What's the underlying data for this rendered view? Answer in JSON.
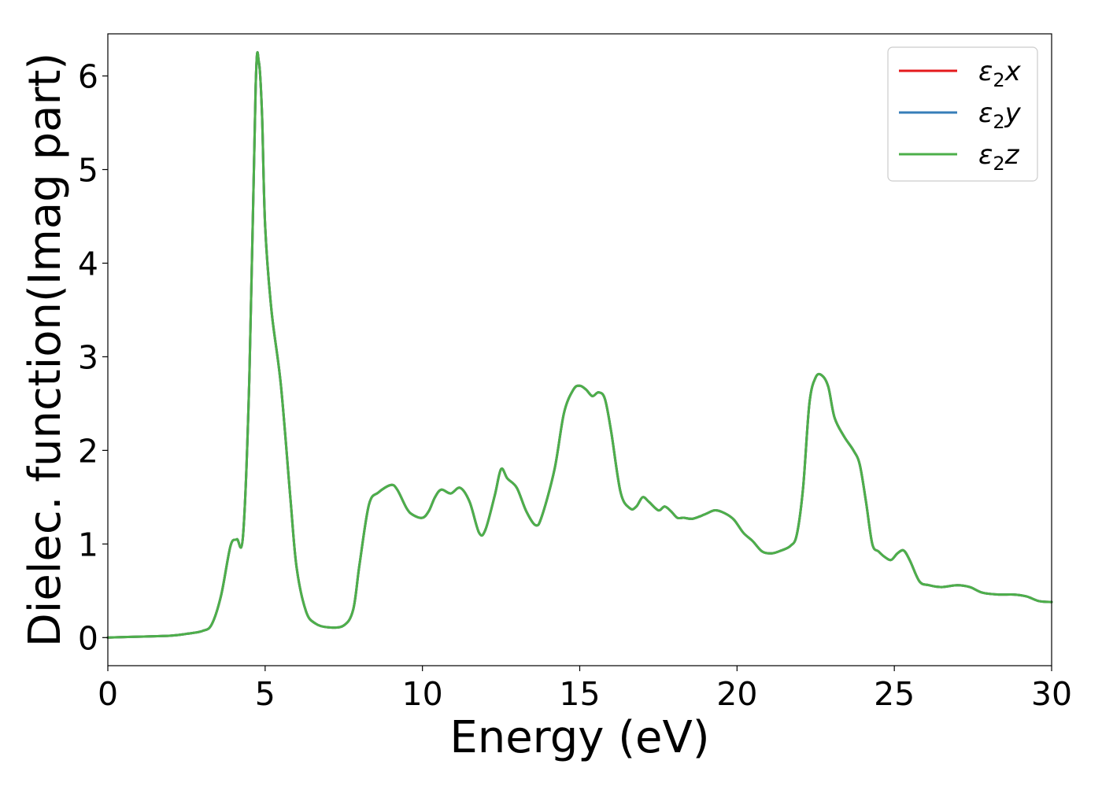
{
  "chart_data": {
    "type": "line",
    "title": "",
    "xlabel": "Energy (eV)",
    "ylabel": "Dielec. function(Imag part)",
    "xlim": [
      0,
      30
    ],
    "ylim": [
      -0.3,
      6.45
    ],
    "xticks": [
      0,
      5,
      10,
      15,
      20,
      25,
      30
    ],
    "xtick_labels": [
      "0",
      "5",
      "10",
      "15",
      "20",
      "25",
      "30"
    ],
    "yticks": [
      0,
      1,
      2,
      3,
      4,
      5,
      6
    ],
    "ytick_labels": [
      "0",
      "1",
      "2",
      "3",
      "4",
      "5",
      "6"
    ],
    "grid": false,
    "legend_position": "top-right",
    "x": [
      0,
      1,
      2,
      2.5,
      3,
      3.3,
      3.6,
      3.9,
      4.1,
      4.3,
      4.5,
      4.7,
      4.8,
      4.9,
      5.0,
      5.2,
      5.5,
      5.8,
      6.0,
      6.3,
      6.6,
      7.0,
      7.5,
      7.8,
      8.0,
      8.3,
      8.6,
      9.0,
      9.2,
      9.5,
      9.7,
      10.0,
      10.2,
      10.4,
      10.6,
      10.9,
      11.2,
      11.5,
      11.8,
      12.0,
      12.3,
      12.5,
      12.7,
      13.0,
      13.3,
      13.6,
      13.8,
      14.2,
      14.5,
      14.8,
      15.0,
      15.2,
      15.4,
      15.6,
      15.8,
      16.0,
      16.3,
      16.6,
      16.8,
      17.0,
      17.2,
      17.5,
      17.7,
      17.9,
      18.1,
      18.3,
      18.6,
      19.0,
      19.3,
      19.6,
      19.9,
      20.2,
      20.5,
      20.8,
      21.1,
      21.4,
      21.7,
      21.9,
      22.1,
      22.3,
      22.5,
      22.7,
      22.9,
      23.1,
      23.4,
      23.7,
      23.9,
      24.1,
      24.3,
      24.5,
      24.7,
      24.9,
      25.1,
      25.3,
      25.5,
      25.8,
      26.1,
      26.5,
      27.0,
      27.4,
      27.8,
      28.3,
      28.8,
      29.2,
      29.6,
      30.0
    ],
    "series": [
      {
        "name": "x",
        "color": "#e41a1c",
        "values": [
          0.0,
          0.01,
          0.02,
          0.04,
          0.07,
          0.14,
          0.45,
          0.98,
          1.05,
          1.1,
          2.8,
          5.9,
          6.15,
          5.6,
          4.4,
          3.5,
          2.7,
          1.5,
          0.75,
          0.28,
          0.15,
          0.11,
          0.13,
          0.3,
          0.78,
          1.42,
          1.55,
          1.63,
          1.58,
          1.38,
          1.31,
          1.28,
          1.35,
          1.5,
          1.58,
          1.54,
          1.6,
          1.45,
          1.12,
          1.15,
          1.52,
          1.8,
          1.7,
          1.6,
          1.35,
          1.2,
          1.3,
          1.8,
          2.4,
          2.65,
          2.69,
          2.65,
          2.58,
          2.62,
          2.55,
          2.2,
          1.55,
          1.38,
          1.4,
          1.5,
          1.45,
          1.36,
          1.4,
          1.35,
          1.28,
          1.28,
          1.27,
          1.32,
          1.36,
          1.33,
          1.26,
          1.12,
          1.03,
          0.92,
          0.9,
          0.93,
          0.98,
          1.1,
          1.6,
          2.5,
          2.78,
          2.8,
          2.68,
          2.35,
          2.15,
          2.0,
          1.85,
          1.45,
          1.0,
          0.92,
          0.86,
          0.83,
          0.9,
          0.93,
          0.82,
          0.6,
          0.56,
          0.54,
          0.56,
          0.54,
          0.48,
          0.46,
          0.46,
          0.44,
          0.39,
          0.38
        ]
      },
      {
        "name": "y",
        "color": "#377eb8",
        "values": [
          0.0,
          0.01,
          0.02,
          0.04,
          0.07,
          0.14,
          0.45,
          0.98,
          1.05,
          1.1,
          2.8,
          5.9,
          6.15,
          5.6,
          4.4,
          3.5,
          2.7,
          1.5,
          0.75,
          0.28,
          0.15,
          0.11,
          0.13,
          0.3,
          0.78,
          1.42,
          1.55,
          1.63,
          1.58,
          1.38,
          1.31,
          1.28,
          1.35,
          1.5,
          1.58,
          1.54,
          1.6,
          1.45,
          1.12,
          1.15,
          1.52,
          1.8,
          1.7,
          1.6,
          1.35,
          1.2,
          1.3,
          1.8,
          2.4,
          2.65,
          2.69,
          2.65,
          2.58,
          2.62,
          2.55,
          2.2,
          1.55,
          1.38,
          1.4,
          1.5,
          1.45,
          1.36,
          1.4,
          1.35,
          1.28,
          1.28,
          1.27,
          1.32,
          1.36,
          1.33,
          1.26,
          1.12,
          1.03,
          0.92,
          0.9,
          0.93,
          0.98,
          1.1,
          1.6,
          2.5,
          2.78,
          2.8,
          2.68,
          2.35,
          2.15,
          2.0,
          1.85,
          1.45,
          1.0,
          0.92,
          0.86,
          0.83,
          0.9,
          0.93,
          0.82,
          0.6,
          0.56,
          0.54,
          0.56,
          0.54,
          0.48,
          0.46,
          0.46,
          0.44,
          0.39,
          0.38
        ]
      },
      {
        "name": "z",
        "color": "#4daf4a",
        "values": [
          0.0,
          0.01,
          0.02,
          0.04,
          0.07,
          0.14,
          0.45,
          0.98,
          1.05,
          1.1,
          2.8,
          5.9,
          6.15,
          5.6,
          4.4,
          3.5,
          2.7,
          1.5,
          0.75,
          0.28,
          0.15,
          0.11,
          0.13,
          0.3,
          0.78,
          1.42,
          1.55,
          1.63,
          1.58,
          1.38,
          1.31,
          1.28,
          1.35,
          1.5,
          1.58,
          1.54,
          1.6,
          1.45,
          1.12,
          1.15,
          1.52,
          1.8,
          1.7,
          1.6,
          1.35,
          1.2,
          1.3,
          1.8,
          2.4,
          2.65,
          2.69,
          2.65,
          2.58,
          2.62,
          2.55,
          2.2,
          1.55,
          1.38,
          1.4,
          1.5,
          1.45,
          1.36,
          1.4,
          1.35,
          1.28,
          1.28,
          1.27,
          1.32,
          1.36,
          1.33,
          1.26,
          1.12,
          1.03,
          0.92,
          0.9,
          0.93,
          0.98,
          1.1,
          1.6,
          2.5,
          2.78,
          2.8,
          2.68,
          2.35,
          2.15,
          2.0,
          1.85,
          1.45,
          1.0,
          0.92,
          0.86,
          0.83,
          0.9,
          0.93,
          0.82,
          0.6,
          0.56,
          0.54,
          0.56,
          0.54,
          0.48,
          0.46,
          0.46,
          0.44,
          0.39,
          0.38
        ]
      }
    ],
    "legend": [
      {
        "symbol": "ε",
        "subscript": "2",
        "suffix": "x",
        "color": "#e41a1c"
      },
      {
        "symbol": "ε",
        "subscript": "2",
        "suffix": "y",
        "color": "#377eb8"
      },
      {
        "symbol": "ε",
        "subscript": "2",
        "suffix": "z",
        "color": "#4daf4a"
      }
    ]
  }
}
